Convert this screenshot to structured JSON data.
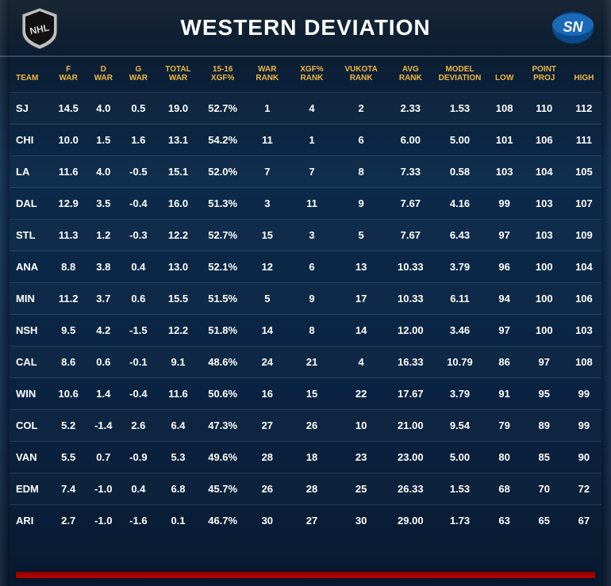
{
  "title": "WESTERN DEVIATION",
  "logos": {
    "left": "nhl-shield",
    "right": "sn-logo"
  },
  "colors": {
    "header_text": "#f0b840",
    "body_text": "#ffffff",
    "bg_top": "#0a1828",
    "bg_mid": "#0c2a4a",
    "row_border": "rgba(255,255,255,0.12)",
    "footer_bar": "#c00000"
  },
  "typography": {
    "title_fontsize": 28,
    "header_fontsize": 10,
    "cell_fontsize": 13,
    "font_weight": "bold"
  },
  "columns": [
    {
      "key": "team",
      "label": "TEAM",
      "width": "c-team",
      "align": "left"
    },
    {
      "key": "fwar",
      "label": "F\nWAR",
      "width": "c-narrow"
    },
    {
      "key": "dwar",
      "label": "D\nWAR",
      "width": "c-narrow"
    },
    {
      "key": "gwar",
      "label": "G\nWAR",
      "width": "c-narrow"
    },
    {
      "key": "totwar",
      "label": "TOTAL\nWAR",
      "width": "c-med"
    },
    {
      "key": "xgf",
      "label": "15-16\nXGF%",
      "width": "c-med"
    },
    {
      "key": "warrank",
      "label": "WAR\nRANK",
      "width": "c-med"
    },
    {
      "key": "xgfrank",
      "label": "XGF%\nRANK",
      "width": "c-med"
    },
    {
      "key": "vukota",
      "label": "VUKOTA\nRANK",
      "width": "c-wide"
    },
    {
      "key": "avgrank",
      "label": "AVG\nRANK",
      "width": "c-med"
    },
    {
      "key": "modeldev",
      "label": "MODEL\nDEVIATION",
      "width": "c-wide"
    },
    {
      "key": "low",
      "label": "LOW",
      "width": "c-narrow"
    },
    {
      "key": "proj",
      "label": "POINT\nPROJ",
      "width": "c-med"
    },
    {
      "key": "high",
      "label": "HIGH",
      "width": "c-narrow"
    }
  ],
  "rows": [
    {
      "team": "SJ",
      "fwar": "14.5",
      "dwar": "4.0",
      "gwar": "0.5",
      "totwar": "19.0",
      "xgf": "52.7%",
      "warrank": "1",
      "xgfrank": "4",
      "vukota": "2",
      "avgrank": "2.33",
      "modeldev": "1.53",
      "low": "108",
      "proj": "110",
      "high": "112"
    },
    {
      "team": "CHI",
      "fwar": "10.0",
      "dwar": "1.5",
      "gwar": "1.6",
      "totwar": "13.1",
      "xgf": "54.2%",
      "warrank": "11",
      "xgfrank": "1",
      "vukota": "6",
      "avgrank": "6.00",
      "modeldev": "5.00",
      "low": "101",
      "proj": "106",
      "high": "111"
    },
    {
      "team": "LA",
      "fwar": "11.6",
      "dwar": "4.0",
      "gwar": "-0.5",
      "totwar": "15.1",
      "xgf": "52.0%",
      "warrank": "7",
      "xgfrank": "7",
      "vukota": "8",
      "avgrank": "7.33",
      "modeldev": "0.58",
      "low": "103",
      "proj": "104",
      "high": "105"
    },
    {
      "team": "DAL",
      "fwar": "12.9",
      "dwar": "3.5",
      "gwar": "-0.4",
      "totwar": "16.0",
      "xgf": "51.3%",
      "warrank": "3",
      "xgfrank": "11",
      "vukota": "9",
      "avgrank": "7.67",
      "modeldev": "4.16",
      "low": "99",
      "proj": "103",
      "high": "107"
    },
    {
      "team": "STL",
      "fwar": "11.3",
      "dwar": "1.2",
      "gwar": "-0.3",
      "totwar": "12.2",
      "xgf": "52.7%",
      "warrank": "15",
      "xgfrank": "3",
      "vukota": "5",
      "avgrank": "7.67",
      "modeldev": "6.43",
      "low": "97",
      "proj": "103",
      "high": "109"
    },
    {
      "team": "ANA",
      "fwar": "8.8",
      "dwar": "3.8",
      "gwar": "0.4",
      "totwar": "13.0",
      "xgf": "52.1%",
      "warrank": "12",
      "xgfrank": "6",
      "vukota": "13",
      "avgrank": "10.33",
      "modeldev": "3.79",
      "low": "96",
      "proj": "100",
      "high": "104"
    },
    {
      "team": "MIN",
      "fwar": "11.2",
      "dwar": "3.7",
      "gwar": "0.6",
      "totwar": "15.5",
      "xgf": "51.5%",
      "warrank": "5",
      "xgfrank": "9",
      "vukota": "17",
      "avgrank": "10.33",
      "modeldev": "6.11",
      "low": "94",
      "proj": "100",
      "high": "106"
    },
    {
      "team": "NSH",
      "fwar": "9.5",
      "dwar": "4.2",
      "gwar": "-1.5",
      "totwar": "12.2",
      "xgf": "51.8%",
      "warrank": "14",
      "xgfrank": "8",
      "vukota": "14",
      "avgrank": "12.00",
      "modeldev": "3.46",
      "low": "97",
      "proj": "100",
      "high": "103"
    },
    {
      "team": "CAL",
      "fwar": "8.6",
      "dwar": "0.6",
      "gwar": "-0.1",
      "totwar": "9.1",
      "xgf": "48.6%",
      "warrank": "24",
      "xgfrank": "21",
      "vukota": "4",
      "avgrank": "16.33",
      "modeldev": "10.79",
      "low": "86",
      "proj": "97",
      "high": "108"
    },
    {
      "team": "WIN",
      "fwar": "10.6",
      "dwar": "1.4",
      "gwar": "-0.4",
      "totwar": "11.6",
      "xgf": "50.6%",
      "warrank": "16",
      "xgfrank": "15",
      "vukota": "22",
      "avgrank": "17.67",
      "modeldev": "3.79",
      "low": "91",
      "proj": "95",
      "high": "99"
    },
    {
      "team": "COL",
      "fwar": "5.2",
      "dwar": "-1.4",
      "gwar": "2.6",
      "totwar": "6.4",
      "xgf": "47.3%",
      "warrank": "27",
      "xgfrank": "26",
      "vukota": "10",
      "avgrank": "21.00",
      "modeldev": "9.54",
      "low": "79",
      "proj": "89",
      "high": "99"
    },
    {
      "team": "VAN",
      "fwar": "5.5",
      "dwar": "0.7",
      "gwar": "-0.9",
      "totwar": "5.3",
      "xgf": "49.6%",
      "warrank": "28",
      "xgfrank": "18",
      "vukota": "23",
      "avgrank": "23.00",
      "modeldev": "5.00",
      "low": "80",
      "proj": "85",
      "high": "90"
    },
    {
      "team": "EDM",
      "fwar": "7.4",
      "dwar": "-1.0",
      "gwar": "0.4",
      "totwar": "6.8",
      "xgf": "45.7%",
      "warrank": "26",
      "xgfrank": "28",
      "vukota": "25",
      "avgrank": "26.33",
      "modeldev": "1.53",
      "low": "68",
      "proj": "70",
      "high": "72"
    },
    {
      "team": "ARI",
      "fwar": "2.7",
      "dwar": "-1.0",
      "gwar": "-1.6",
      "totwar": "0.1",
      "xgf": "46.7%",
      "warrank": "30",
      "xgfrank": "27",
      "vukota": "30",
      "avgrank": "29.00",
      "modeldev": "1.73",
      "low": "63",
      "proj": "65",
      "high": "67"
    }
  ]
}
